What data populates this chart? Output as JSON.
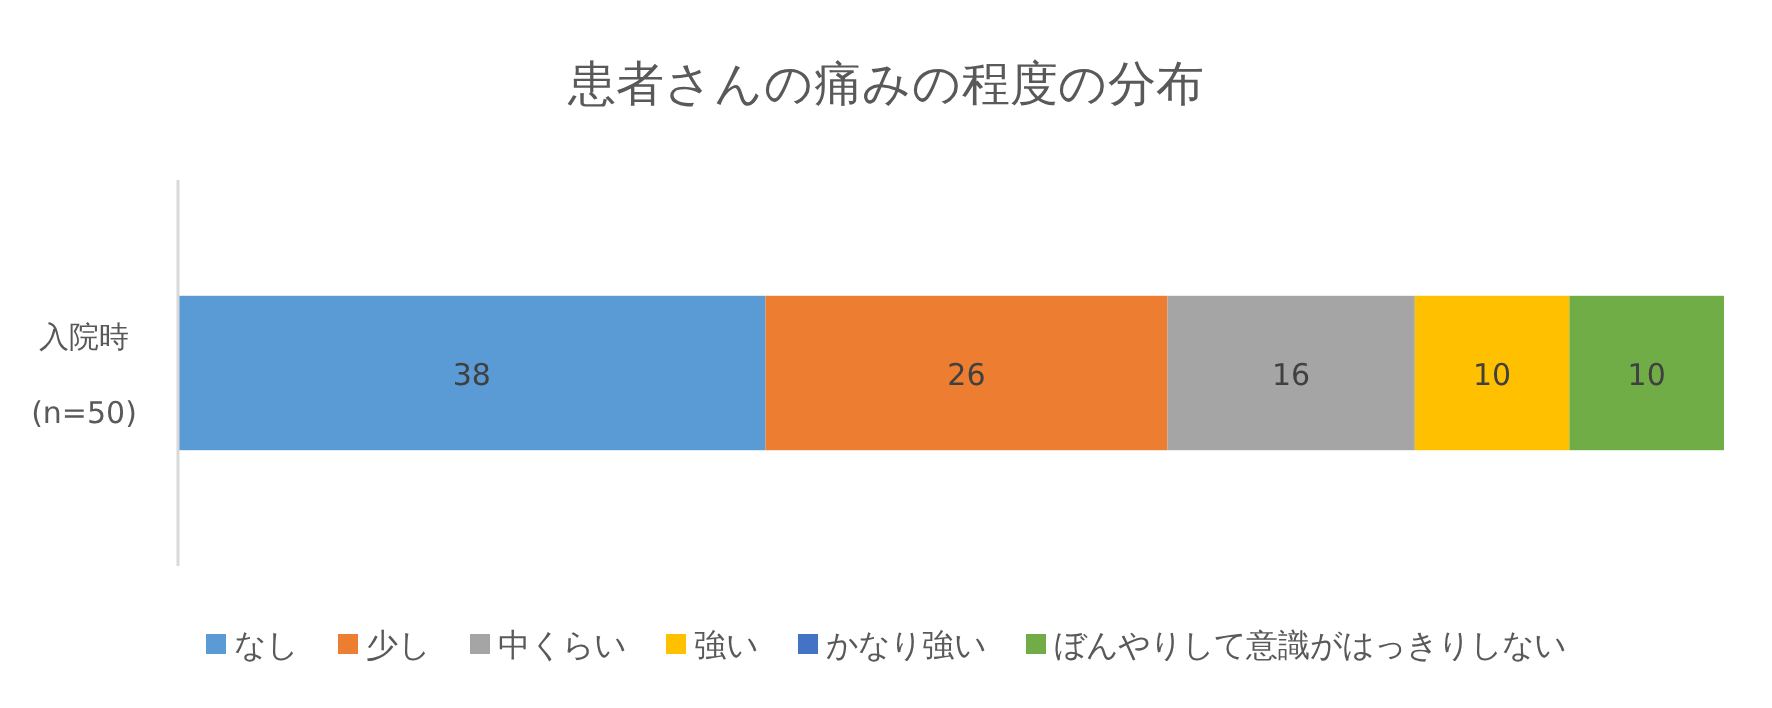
{
  "chart_data": {
    "type": "bar",
    "orientation": "horizontal",
    "stacked": true,
    "title": "患者さんの痛みの程度の分布",
    "categories": [
      "入院時\n(n=50)"
    ],
    "legend": "bottom",
    "grid": false,
    "series": [
      {
        "name": "なし",
        "color": "#5b9bd5",
        "values": [
          38
        ],
        "value_labels": [
          "38"
        ]
      },
      {
        "name": "少し",
        "color": "#ed7d31",
        "values": [
          26
        ],
        "value_labels": [
          "26"
        ]
      },
      {
        "name": "中くらい",
        "color": "#a5a5a5",
        "values": [
          16
        ],
        "value_labels": [
          "16"
        ]
      },
      {
        "name": "強い",
        "color": "#ffc000",
        "values": [
          10
        ],
        "value_labels": [
          "10"
        ]
      },
      {
        "name": "かなり強い",
        "color": "#4472c4",
        "values": [
          0
        ],
        "value_labels": [
          null
        ]
      },
      {
        "name": "ぼんやりして意識がはっきりしない",
        "color": "#70ad47",
        "values": [
          10
        ],
        "value_labels": [
          "10"
        ]
      }
    ]
  }
}
